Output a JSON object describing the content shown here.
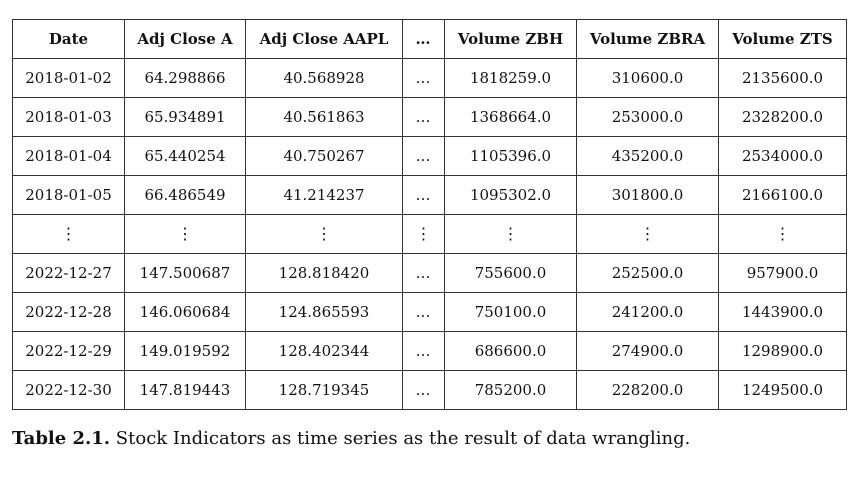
{
  "table": {
    "headers": [
      "Date",
      "Adj Close A",
      "Adj Close AAPL",
      "…",
      "Volume ZBH",
      "Volume ZBRA",
      "Volume ZTS"
    ],
    "rows_top": [
      [
        "2018-01-02",
        "64.298866",
        "40.568928",
        "…",
        "1818259.0",
        "310600.0",
        "2135600.0"
      ],
      [
        "2018-01-03",
        "65.934891",
        "40.561863",
        "…",
        "1368664.0",
        "253000.0",
        "2328200.0"
      ],
      [
        "2018-01-04",
        "65.440254",
        "40.750267",
        "…",
        "1105396.0",
        "435200.0",
        "2534000.0"
      ],
      [
        "2018-01-05",
        "66.486549",
        "41.214237",
        "…",
        "1095302.0",
        "301800.0",
        "2166100.0"
      ]
    ],
    "vdots": [
      "⋮",
      "⋮",
      "⋮",
      "⋮",
      "⋮",
      "⋮",
      "⋮"
    ],
    "rows_bottom": [
      [
        "2022-12-27",
        "147.500687",
        "128.818420",
        "…",
        "755600.0",
        "252500.0",
        "957900.0"
      ],
      [
        "2022-12-28",
        "146.060684",
        "124.865593",
        "…",
        "750100.0",
        "241200.0",
        "1443900.0"
      ],
      [
        "2022-12-29",
        "149.019592",
        "128.402344",
        "…",
        "686600.0",
        "274900.0",
        "1298900.0"
      ],
      [
        "2022-12-30",
        "147.819443",
        "128.719345",
        "…",
        "785200.0",
        "228200.0",
        "1249500.0"
      ]
    ]
  },
  "caption": {
    "label": "Table 2.1.",
    "text": "Stock Indicators as time series as the result of data wrangling."
  }
}
